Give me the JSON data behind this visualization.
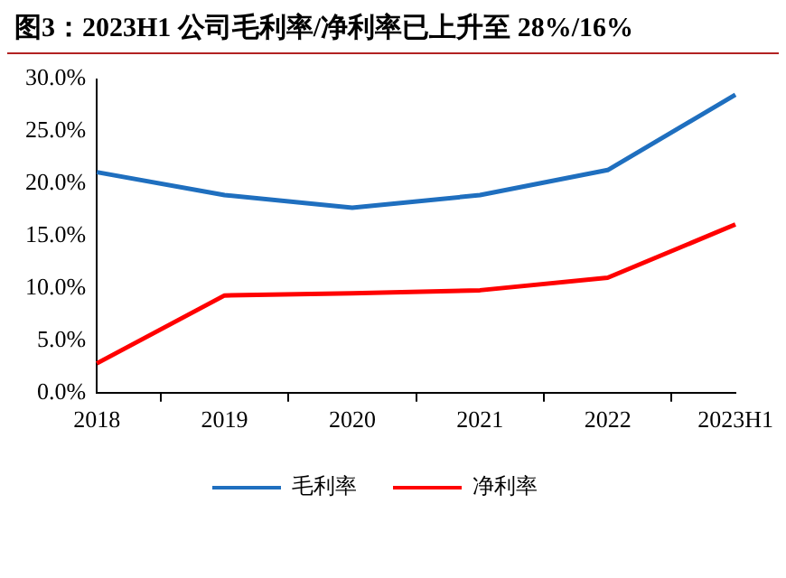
{
  "chart_data": {
    "type": "line",
    "title": "图3：2023H1 公司毛利率/净利率已上升至 28%/16%",
    "categories": [
      "2018",
      "2019",
      "2020",
      "2021",
      "2022",
      "2023H1"
    ],
    "series": [
      {
        "name": "毛利率",
        "color": "#1f6fbf",
        "values": [
          21.1,
          18.9,
          17.7,
          18.9,
          21.3,
          28.5
        ]
      },
      {
        "name": "净利率",
        "color": "#ff0000",
        "values": [
          2.8,
          9.3,
          9.5,
          9.8,
          11.0,
          16.1
        ]
      }
    ],
    "ylim": [
      0,
      30
    ],
    "yticks": [
      {
        "value": 0,
        "label": "0.0%"
      },
      {
        "value": 5,
        "label": "5.0%"
      },
      {
        "value": 10,
        "label": "10.0%"
      },
      {
        "value": 15,
        "label": "15.0%"
      },
      {
        "value": 20,
        "label": "20.0%"
      },
      {
        "value": 25,
        "label": "25.0%"
      },
      {
        "value": 30,
        "label": "30.0%"
      }
    ],
    "grid": false,
    "legend": "bottom",
    "marker": "none",
    "line_style": "solid"
  }
}
